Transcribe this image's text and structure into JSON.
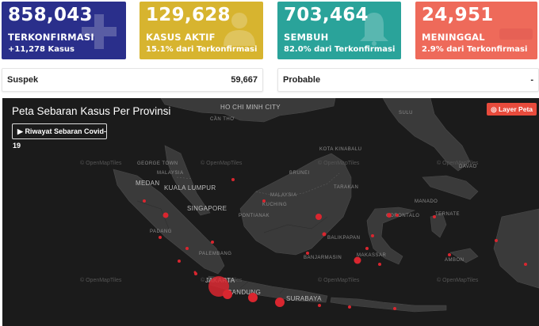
{
  "stats": {
    "confirmed": {
      "value": "858,043",
      "label": "TERKONFIRMASI",
      "sub": "+11,278 Kasus",
      "color": "#2a2f8b"
    },
    "active": {
      "value": "129,628",
      "label": "KASUS AKTIF",
      "sub": "15.1% dari Terkonfirmasi",
      "color": "#d7b42f"
    },
    "recovered": {
      "value": "703,464",
      "label": "SEMBUH",
      "sub": "82.0% dari Terkonfirmasi",
      "color": "#2aa39a"
    },
    "deaths": {
      "value": "24,951",
      "label": "MENINGGAL",
      "sub": "2.9% dari Terkonfirmasi",
      "color": "#ee6a5a"
    }
  },
  "info": {
    "suspek": {
      "label": "Suspek",
      "value": "59,667"
    },
    "probable": {
      "label": "Probable",
      "value": "-"
    }
  },
  "map": {
    "title": "Peta Sebaran Kasus Per Provinsi",
    "history_button": "Riwayat Sebaran Covid-19",
    "layer_button": "Layer Peta",
    "tiles_credit": "© OpenMapTiles",
    "places": {
      "hcmc": "HO CHI MINH CITY",
      "cantho": "CẦN THƠ",
      "malaysia1": "MALAYSIA",
      "malaysia2": "MALAYSIA",
      "georgetown": "GEORGE TOWN",
      "medan": "MEDAN",
      "kl": "KUALA LUMPUR",
      "singapore": "SINGAPORE",
      "padang": "PADANG",
      "palembang": "PALEMBANG",
      "jakarta": "JAKARTA",
      "bandung": "BANDUNG",
      "surabaya": "SURABAYA",
      "kuching": "KUCHING",
      "pontianak": "PONTIANAK",
      "banjarmasin": "BANJARMASIN",
      "balikpapan": "BALIKPAPAN",
      "tarakan": "TARAKAN",
      "gorontalo": "GORONTALO",
      "ternate": "TERNATE",
      "ambon": "AMBON",
      "brunei": "BRUNEI",
      "kotakinabalu": "KOTA KINABALU",
      "davao": "DAVAO",
      "makassar": "MAKASSAR",
      "manado": "MANADO",
      "sulu": "SULU"
    }
  }
}
